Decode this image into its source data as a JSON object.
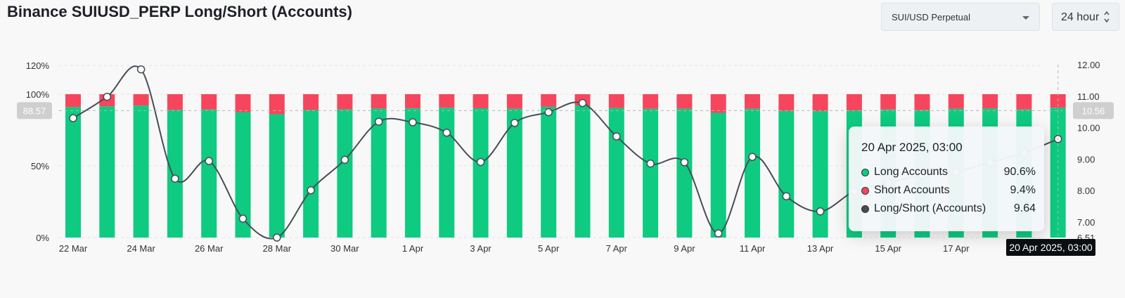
{
  "header": {
    "title": "Binance SUIUSD_PERP Long/Short (Accounts)",
    "contract_select": "SUI/USD Perpetual",
    "interval_select": "24 hour"
  },
  "colors": {
    "long": "#0ecb81",
    "short": "#f6465d",
    "ratio_line": "#474d57",
    "badge_bg": "#0b0e11"
  },
  "chart_data": {
    "type": "bar",
    "categories": [
      "22 Mar",
      "23 Mar",
      "24 Mar",
      "25 Mar",
      "26 Mar",
      "27 Mar",
      "28 Mar",
      "29 Mar",
      "30 Mar",
      "31 Mar",
      "1 Apr",
      "2 Apr",
      "3 Apr",
      "4 Apr",
      "5 Apr",
      "6 Apr",
      "7 Apr",
      "8 Apr",
      "9 Apr",
      "10 Apr",
      "11 Apr",
      "12 Apr",
      "13 Apr",
      "14 Apr",
      "15 Apr",
      "16 Apr",
      "17 Apr",
      "18 Apr",
      "19 Apr",
      "20 Apr"
    ],
    "x_tick_labels": [
      "22 Mar",
      "24 Mar",
      "26 Mar",
      "28 Mar",
      "30 Mar",
      "1 Apr",
      "3 Apr",
      "5 Apr",
      "7 Apr",
      "9 Apr",
      "11 Apr",
      "13 Apr",
      "15 Apr",
      "17 Apr"
    ],
    "series": [
      {
        "name": "Long Accounts",
        "axis": "left",
        "values": [
          91,
          91.5,
          92,
          89,
          89.3,
          87.5,
          86,
          89,
          89.4,
          90,
          90.1,
          90.6,
          90.2,
          89.8,
          91.2,
          92,
          90.4,
          89.8,
          89.8,
          87,
          89.8,
          88.3,
          88.2,
          88.7,
          89.3,
          88.9,
          89.8,
          90,
          89.3,
          90.6
        ]
      },
      {
        "name": "Short Accounts",
        "axis": "left",
        "values": [
          9,
          8.5,
          8,
          11,
          10.7,
          12.5,
          14,
          11,
          10.6,
          10,
          9.9,
          9.4,
          9.8,
          10.2,
          8.8,
          8,
          9.6,
          10.2,
          10.2,
          13,
          10.2,
          11.7,
          11.8,
          11.3,
          10.7,
          11.1,
          10.2,
          10,
          10.7,
          9.4
        ]
      },
      {
        "name": "Long/Short (Accounts)",
        "type": "line",
        "axis": "right",
        "values": [
          10.3,
          10.98,
          11.85,
          8.38,
          8.94,
          7.11,
          6.51,
          8.01,
          8.98,
          10.19,
          10.17,
          9.84,
          8.91,
          10.15,
          10.49,
          10.78,
          9.72,
          8.86,
          8.9,
          6.64,
          9.07,
          7.82,
          7.34,
          7.98,
          8.25,
          8.5,
          8.6,
          8.9,
          9.2,
          9.64
        ]
      }
    ],
    "y_left": {
      "ticks": [
        "0%",
        "50%",
        "100%",
        "120%"
      ],
      "range": [
        0,
        120
      ]
    },
    "y_right": {
      "ticks": [
        "6.51",
        "7.00",
        "8.00",
        "9.00",
        "10.00",
        "11.00",
        "12.00"
      ],
      "range": [
        6.51,
        12.0
      ]
    },
    "crosshair": {
      "left_value": "88.57",
      "right_value": "10.56",
      "x_label": "20 Apr 2025, 03:00"
    },
    "legend": "none",
    "grid": true
  },
  "tooltip": {
    "title": "20 Apr 2025, 03:00",
    "rows": [
      {
        "name": "Long Accounts",
        "value": "90.6%",
        "color": "#0ecb81"
      },
      {
        "name": "Short Accounts",
        "value": "9.4%",
        "color": "#f6465d"
      },
      {
        "name": "Long/Short (Accounts)",
        "value": "9.64",
        "color": "#474d57"
      }
    ]
  }
}
